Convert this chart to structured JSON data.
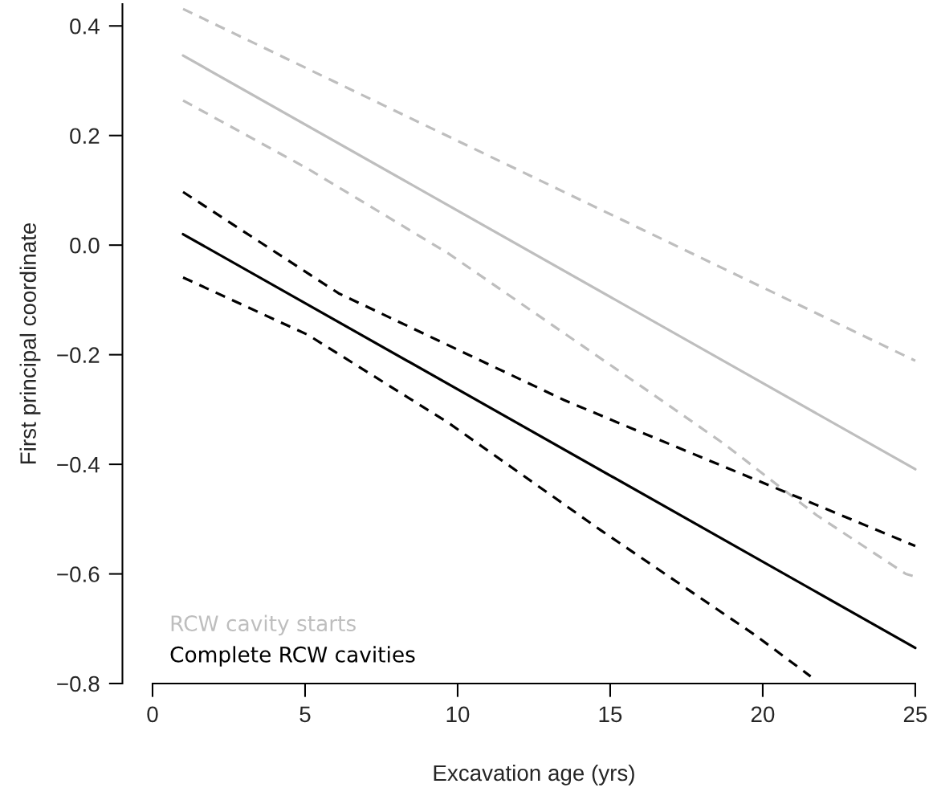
{
  "chart_data": {
    "type": "line",
    "xlabel": "Excavation age (yrs)",
    "ylabel": "First principal coordinate",
    "xlim": [
      0,
      25
    ],
    "xticks": [
      0,
      5,
      10,
      15,
      20,
      25
    ],
    "ylim": [
      -0.8,
      0.44
    ],
    "yticks": [
      {
        "value": -0.8,
        "label": "−0.8"
      },
      {
        "value": -0.6,
        "label": "−0.6"
      },
      {
        "value": -0.4,
        "label": "−0.4"
      },
      {
        "value": -0.2,
        "label": "−0.2"
      },
      {
        "value": 0.0,
        "label": "0.0"
      },
      {
        "value": 0.2,
        "label": "0.2"
      },
      {
        "value": 0.4,
        "label": "0.4"
      }
    ],
    "legend": "bottom left",
    "series": [
      {
        "name": "RCW cavity starts",
        "color": "#bebebe",
        "line_style": "solid",
        "x": [
          1,
          25
        ],
        "values": [
          0.346,
          -0.409
        ]
      },
      {
        "color": "#bebebe",
        "line_style": "dashed",
        "x": [
          1,
          25
        ],
        "values": [
          0.431,
          -0.211
        ]
      },
      {
        "color": "#bebebe",
        "line_style": "dashed",
        "x": [
          1,
          5.1,
          9.69,
          16.73,
          18.74,
          21.77,
          24.69,
          25
        ],
        "values": [
          0.264,
          0.139,
          -0.015,
          -0.285,
          -0.363,
          -0.493,
          -0.6,
          -0.605
        ]
      },
      {
        "name": "Complete RCW cavities",
        "color": "#000000",
        "line_style": "solid",
        "x": [
          1,
          25
        ],
        "values": [
          0.02,
          -0.735
        ]
      },
      {
        "color": "#000000",
        "line_style": "dashed",
        "x": [
          1,
          6.1,
          13.5,
          15.73,
          20.76,
          25
        ],
        "values": [
          0.097,
          -0.088,
          -0.283,
          -0.335,
          -0.451,
          -0.549
        ]
      },
      {
        "color": "#000000",
        "line_style": "dashed",
        "x": [
          1,
          5.1,
          9.69,
          14.71,
          19.76,
          21.57
        ],
        "values": [
          -0.059,
          -0.164,
          -0.324,
          -0.521,
          -0.712,
          -0.787
        ]
      }
    ]
  }
}
